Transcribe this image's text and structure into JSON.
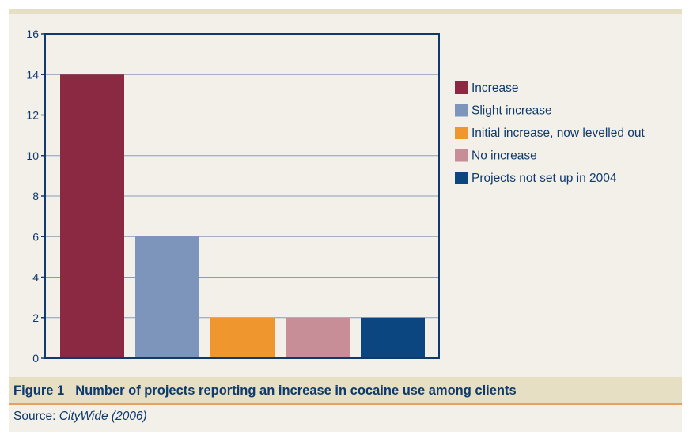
{
  "caption": {
    "figure_number": "Figure 1",
    "title": "Number of projects reporting an increase in cocaine use among clients"
  },
  "source": {
    "label": "Source: ",
    "citation": "CityWide (2006)"
  },
  "colors": {
    "panel_bg": "#f3f0ea",
    "caption_bg": "#e6dfc3",
    "axis": "#0f3a6b",
    "grid": "#8a9cb5",
    "rule": "#e9a05a"
  },
  "chart_data": {
    "type": "bar",
    "title": "",
    "xlabel": "",
    "ylabel": "",
    "ylim": [
      0,
      16
    ],
    "yticks": [
      0,
      2,
      4,
      6,
      8,
      10,
      12,
      14,
      16
    ],
    "grid": true,
    "legend_position": "right",
    "series": [
      {
        "name": "Increase",
        "value": 14,
        "color": "#8b2942"
      },
      {
        "name": "Slight increase",
        "value": 6,
        "color": "#7d95bb"
      },
      {
        "name": "Initial increase, now levelled out",
        "value": 2,
        "color": "#f0962e"
      },
      {
        "name": "No increase",
        "value": 2,
        "color": "#c78e97"
      },
      {
        "name": "Projects not set up in 2004",
        "value": 2,
        "color": "#0c4680"
      }
    ]
  }
}
